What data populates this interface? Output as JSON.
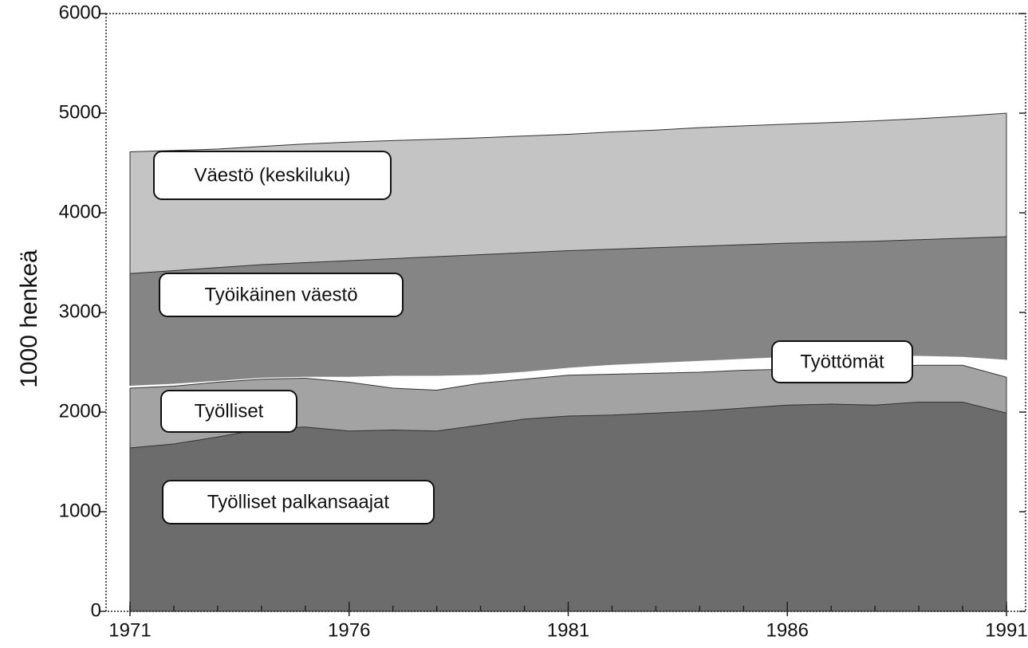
{
  "chart_data": {
    "type": "area",
    "ylabel": "1000 henkeä",
    "x": [
      1971,
      1972,
      1973,
      1974,
      1975,
      1976,
      1977,
      1978,
      1979,
      1980,
      1981,
      1982,
      1983,
      1984,
      1985,
      1986,
      1987,
      1988,
      1989,
      1990,
      1991
    ],
    "xlim": [
      1971,
      1991
    ],
    "xticks": [
      1971,
      1976,
      1981,
      1986,
      1991
    ],
    "ylim": [
      0,
      6000
    ],
    "yticks": [
      0,
      1000,
      2000,
      3000,
      4000,
      5000,
      6000
    ],
    "series": [
      {
        "name": "Väestö (keskiluku)",
        "color": "#c4c4c4",
        "values": [
          4612,
          4626,
          4640,
          4666,
          4691,
          4710,
          4725,
          4738,
          4753,
          4771,
          4788,
          4812,
          4830,
          4855,
          4873,
          4890,
          4906,
          4923,
          4945,
          4970,
          5000
        ]
      },
      {
        "name": "Työikäinen väestö",
        "color": "#858585",
        "values": [
          3390,
          3420,
          3450,
          3480,
          3500,
          3520,
          3540,
          3560,
          3580,
          3600,
          3620,
          3635,
          3650,
          3665,
          3680,
          3695,
          3705,
          3715,
          3730,
          3745,
          3760
        ]
      },
      {
        "name": "Työttömät",
        "color": "#ffffff",
        "values": [
          2260,
          2280,
          2310,
          2340,
          2350,
          2350,
          2360,
          2360,
          2370,
          2400,
          2440,
          2470,
          2490,
          2510,
          2530,
          2550,
          2560,
          2560,
          2560,
          2550,
          2520
        ]
      },
      {
        "name": "Työlliset",
        "color": "#a3a3a3",
        "values": [
          2240,
          2260,
          2300,
          2330,
          2340,
          2300,
          2240,
          2220,
          2290,
          2330,
          2370,
          2380,
          2390,
          2400,
          2420,
          2430,
          2440,
          2450,
          2470,
          2470,
          2350
        ]
      },
      {
        "name": "Työlliset palkansaajat",
        "color": "#6c6c6c",
        "values": [
          1640,
          1680,
          1750,
          1830,
          1850,
          1810,
          1820,
          1810,
          1870,
          1930,
          1960,
          1970,
          1990,
          2010,
          2040,
          2070,
          2080,
          2070,
          2100,
          2100,
          1990
        ]
      }
    ]
  }
}
